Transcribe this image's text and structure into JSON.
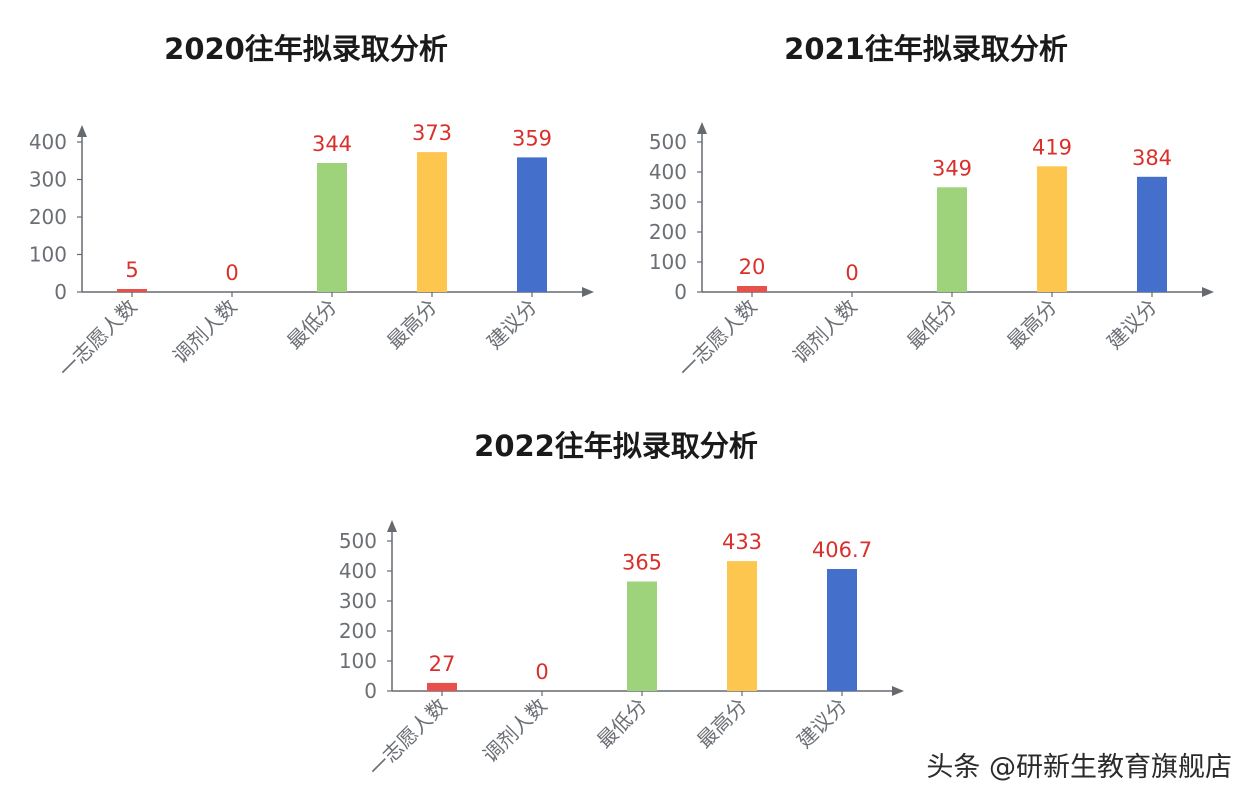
{
  "watermark": "头条 @研新生教育旗舰店",
  "colors": {
    "axis": "#666a70",
    "tick_text": "#6b6f75",
    "value_label": "#d9302c",
    "category_text": "#6b6f75",
    "bars": [
      "#e8514b",
      "#e8514b",
      "#9fd37b",
      "#fcc64f",
      "#4470cb"
    ]
  },
  "chart_data": [
    {
      "type": "bar",
      "title": "2020往年拟录取分析",
      "categories": [
        "一志愿人数",
        "调剂人数",
        "最低分",
        "最高分",
        "建议分"
      ],
      "values": [
        5,
        0,
        344,
        373,
        359
      ],
      "value_labels": [
        "5",
        "0",
        "344",
        "373",
        "359"
      ],
      "yticks": [
        0,
        100,
        200,
        300,
        400
      ],
      "ylim": [
        0,
        400
      ],
      "xlabel": "",
      "ylabel": "",
      "grid": false,
      "legend": "none"
    },
    {
      "type": "bar",
      "title": "2021往年拟录取分析",
      "categories": [
        "一志愿人数",
        "调剂人数",
        "最低分",
        "最高分",
        "建议分"
      ],
      "values": [
        20,
        0,
        349,
        419,
        384
      ],
      "value_labels": [
        "20",
        "0",
        "349",
        "419",
        "384"
      ],
      "yticks": [
        0,
        100,
        200,
        300,
        400,
        500
      ],
      "ylim": [
        0,
        500
      ],
      "xlabel": "",
      "ylabel": "",
      "grid": false,
      "legend": "none"
    },
    {
      "type": "bar",
      "title": "2022往年拟录取分析",
      "categories": [
        "一志愿人数",
        "调剂人数",
        "最低分",
        "最高分",
        "建议分"
      ],
      "values": [
        27,
        0,
        365,
        433,
        406.7
      ],
      "value_labels": [
        "27",
        "0",
        "365",
        "433",
        "406.7"
      ],
      "yticks": [
        0,
        100,
        200,
        300,
        400,
        500
      ],
      "ylim": [
        0,
        500
      ],
      "xlabel": "",
      "ylabel": "",
      "grid": false,
      "legend": "none"
    }
  ]
}
